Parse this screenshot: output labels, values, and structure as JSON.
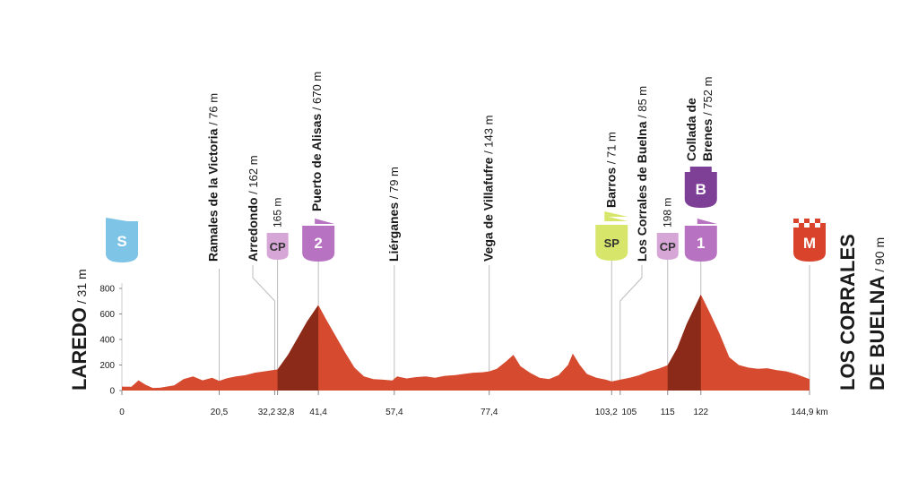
{
  "chart_data": {
    "type": "area",
    "title": "",
    "xlabel": "",
    "ylabel": "",
    "x_unit": "km",
    "ylim": [
      0,
      800
    ],
    "xlim": [
      0,
      144.9
    ],
    "y_ticks": [
      0,
      200,
      400,
      600,
      800
    ],
    "x_ticks": [
      {
        "value": 0,
        "label": "0"
      },
      {
        "value": 20.5,
        "label": "20,5"
      },
      {
        "value": 32.2,
        "label": "32,2"
      },
      {
        "value": 32.8,
        "label": "32,8"
      },
      {
        "value": 41.4,
        "label": "41,4"
      },
      {
        "value": 57.4,
        "label": "57,4"
      },
      {
        "value": 77.4,
        "label": "77,4"
      },
      {
        "value": 103.2,
        "label": "103,2"
      },
      {
        "value": 105,
        "label": "105"
      },
      {
        "value": 115,
        "label": "115"
      },
      {
        "value": 122,
        "label": "122"
      },
      {
        "value": 144.9,
        "label": "144,9 km"
      }
    ],
    "profile": {
      "x": [
        0,
        2,
        3.5,
        5,
        6.5,
        8,
        11,
        13,
        15,
        17,
        19,
        20.5,
        22,
        24,
        26,
        28,
        30,
        32.2,
        32.8,
        35,
        37,
        39,
        41.4,
        43,
        45,
        47,
        49,
        51,
        53,
        55,
        57,
        58,
        60,
        62,
        64,
        66,
        68,
        70,
        72,
        74,
        76,
        77.4,
        79,
        81,
        82.5,
        84,
        86,
        88,
        90,
        92,
        94,
        95,
        96.5,
        98,
        100,
        102,
        103.2,
        105,
        107,
        109,
        111,
        113,
        115,
        117,
        119,
        122,
        124,
        126,
        128,
        130,
        132,
        134,
        136,
        138,
        140,
        142,
        144.9
      ],
      "y": [
        31,
        30,
        80,
        45,
        20,
        22,
        40,
        90,
        110,
        80,
        100,
        76,
        95,
        110,
        120,
        140,
        150,
        162,
        165,
        280,
        410,
        540,
        670,
        560,
        430,
        300,
        180,
        110,
        90,
        85,
        79,
        110,
        95,
        105,
        110,
        100,
        115,
        120,
        130,
        140,
        143,
        150,
        170,
        230,
        280,
        190,
        140,
        100,
        90,
        120,
        200,
        290,
        200,
        130,
        100,
        85,
        71,
        85,
        100,
        120,
        150,
        170,
        198,
        330,
        520,
        752,
        600,
        440,
        260,
        200,
        180,
        170,
        175,
        160,
        150,
        130,
        90
      ]
    },
    "markers": [
      {
        "km": 0,
        "type": "start",
        "badge": "S",
        "color": "#7ec4e6"
      },
      {
        "km": 20.5,
        "name": "Ramales de la Victoria",
        "alt": " / 76 m"
      },
      {
        "km": 32.2,
        "name": "Arredondo",
        "alt": " / 162 m"
      },
      {
        "km": 32.8,
        "type": "checkpoint",
        "badge": "CP",
        "alt": "165 m",
        "color": "#d6a6d6"
      },
      {
        "km": 41.4,
        "name": "Puerto de Alisas",
        "alt": " / 670 m",
        "badge": "2",
        "color": "#b872c2"
      },
      {
        "km": 57.4,
        "name": "Liérganes",
        "alt": " / 79 m"
      },
      {
        "km": 77.4,
        "name": "Vega de Villafufre",
        "alt": " / 143 m"
      },
      {
        "km": 103.2,
        "name": "Barros",
        "alt": " / 71 m",
        "badge": "SP",
        "color": "#d7e66a"
      },
      {
        "km": 105,
        "name": "Los Corrales de Buelna",
        "alt": " / 85 m"
      },
      {
        "km": 115,
        "type": "checkpoint",
        "badge": "CP",
        "alt": "198 m",
        "color": "#d6a6d6"
      },
      {
        "km": 122,
        "name_lines": [
          "Collada de",
          "Brenes"
        ],
        "alt": " / 752 m",
        "badge": "1",
        "bonus_badge": "B",
        "color": "#b872c2",
        "bonus_color": "#7e3f97"
      },
      {
        "km": 144.9,
        "type": "finish",
        "badge": "M",
        "color": "#d9432c"
      }
    ],
    "start_place": {
      "name": "LAREDO",
      "alt": " / 31 m"
    },
    "finish_place": {
      "name_lines": [
        "LOS CORRALES",
        "DE BUELNA"
      ],
      "alt": " / 90 m"
    },
    "colors": {
      "profile_fill": "#d64a2f",
      "climb_fill": "#8c2a1a",
      "axis": "#cfcfcf",
      "guide": "#bdbdbd"
    }
  }
}
